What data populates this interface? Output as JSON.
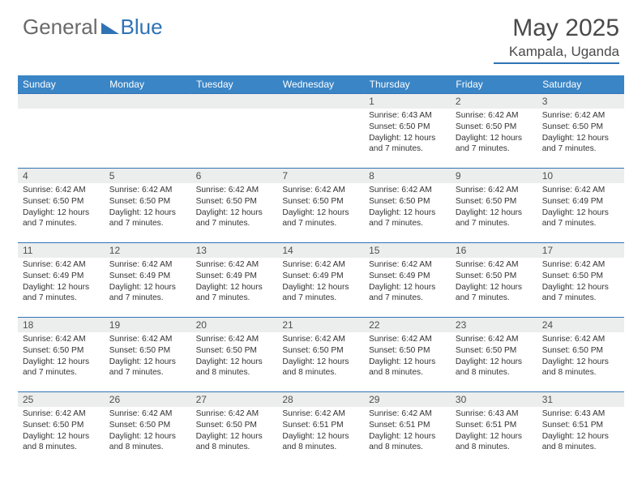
{
  "brand": {
    "part1": "General",
    "part2": "Blue"
  },
  "title": "May 2025",
  "location": "Kampala, Uganda",
  "colors": {
    "header_bg": "#3a85c6",
    "accent": "#2f73b5",
    "daynum_bg": "#eceded",
    "text": "#333333",
    "title_text": "#4a4a4a"
  },
  "day_names": [
    "Sunday",
    "Monday",
    "Tuesday",
    "Wednesday",
    "Thursday",
    "Friday",
    "Saturday"
  ],
  "weeks": [
    [
      {
        "n": "",
        "sr": "",
        "ss": "",
        "dl": ""
      },
      {
        "n": "",
        "sr": "",
        "ss": "",
        "dl": ""
      },
      {
        "n": "",
        "sr": "",
        "ss": "",
        "dl": ""
      },
      {
        "n": "",
        "sr": "",
        "ss": "",
        "dl": ""
      },
      {
        "n": "1",
        "sr": "Sunrise: 6:43 AM",
        "ss": "Sunset: 6:50 PM",
        "dl": "Daylight: 12 hours and 7 minutes."
      },
      {
        "n": "2",
        "sr": "Sunrise: 6:42 AM",
        "ss": "Sunset: 6:50 PM",
        "dl": "Daylight: 12 hours and 7 minutes."
      },
      {
        "n": "3",
        "sr": "Sunrise: 6:42 AM",
        "ss": "Sunset: 6:50 PM",
        "dl": "Daylight: 12 hours and 7 minutes."
      }
    ],
    [
      {
        "n": "4",
        "sr": "Sunrise: 6:42 AM",
        "ss": "Sunset: 6:50 PM",
        "dl": "Daylight: 12 hours and 7 minutes."
      },
      {
        "n": "5",
        "sr": "Sunrise: 6:42 AM",
        "ss": "Sunset: 6:50 PM",
        "dl": "Daylight: 12 hours and 7 minutes."
      },
      {
        "n": "6",
        "sr": "Sunrise: 6:42 AM",
        "ss": "Sunset: 6:50 PM",
        "dl": "Daylight: 12 hours and 7 minutes."
      },
      {
        "n": "7",
        "sr": "Sunrise: 6:42 AM",
        "ss": "Sunset: 6:50 PM",
        "dl": "Daylight: 12 hours and 7 minutes."
      },
      {
        "n": "8",
        "sr": "Sunrise: 6:42 AM",
        "ss": "Sunset: 6:50 PM",
        "dl": "Daylight: 12 hours and 7 minutes."
      },
      {
        "n": "9",
        "sr": "Sunrise: 6:42 AM",
        "ss": "Sunset: 6:50 PM",
        "dl": "Daylight: 12 hours and 7 minutes."
      },
      {
        "n": "10",
        "sr": "Sunrise: 6:42 AM",
        "ss": "Sunset: 6:49 PM",
        "dl": "Daylight: 12 hours and 7 minutes."
      }
    ],
    [
      {
        "n": "11",
        "sr": "Sunrise: 6:42 AM",
        "ss": "Sunset: 6:49 PM",
        "dl": "Daylight: 12 hours and 7 minutes."
      },
      {
        "n": "12",
        "sr": "Sunrise: 6:42 AM",
        "ss": "Sunset: 6:49 PM",
        "dl": "Daylight: 12 hours and 7 minutes."
      },
      {
        "n": "13",
        "sr": "Sunrise: 6:42 AM",
        "ss": "Sunset: 6:49 PM",
        "dl": "Daylight: 12 hours and 7 minutes."
      },
      {
        "n": "14",
        "sr": "Sunrise: 6:42 AM",
        "ss": "Sunset: 6:49 PM",
        "dl": "Daylight: 12 hours and 7 minutes."
      },
      {
        "n": "15",
        "sr": "Sunrise: 6:42 AM",
        "ss": "Sunset: 6:49 PM",
        "dl": "Daylight: 12 hours and 7 minutes."
      },
      {
        "n": "16",
        "sr": "Sunrise: 6:42 AM",
        "ss": "Sunset: 6:50 PM",
        "dl": "Daylight: 12 hours and 7 minutes."
      },
      {
        "n": "17",
        "sr": "Sunrise: 6:42 AM",
        "ss": "Sunset: 6:50 PM",
        "dl": "Daylight: 12 hours and 7 minutes."
      }
    ],
    [
      {
        "n": "18",
        "sr": "Sunrise: 6:42 AM",
        "ss": "Sunset: 6:50 PM",
        "dl": "Daylight: 12 hours and 7 minutes."
      },
      {
        "n": "19",
        "sr": "Sunrise: 6:42 AM",
        "ss": "Sunset: 6:50 PM",
        "dl": "Daylight: 12 hours and 7 minutes."
      },
      {
        "n": "20",
        "sr": "Sunrise: 6:42 AM",
        "ss": "Sunset: 6:50 PM",
        "dl": "Daylight: 12 hours and 8 minutes."
      },
      {
        "n": "21",
        "sr": "Sunrise: 6:42 AM",
        "ss": "Sunset: 6:50 PM",
        "dl": "Daylight: 12 hours and 8 minutes."
      },
      {
        "n": "22",
        "sr": "Sunrise: 6:42 AM",
        "ss": "Sunset: 6:50 PM",
        "dl": "Daylight: 12 hours and 8 minutes."
      },
      {
        "n": "23",
        "sr": "Sunrise: 6:42 AM",
        "ss": "Sunset: 6:50 PM",
        "dl": "Daylight: 12 hours and 8 minutes."
      },
      {
        "n": "24",
        "sr": "Sunrise: 6:42 AM",
        "ss": "Sunset: 6:50 PM",
        "dl": "Daylight: 12 hours and 8 minutes."
      }
    ],
    [
      {
        "n": "25",
        "sr": "Sunrise: 6:42 AM",
        "ss": "Sunset: 6:50 PM",
        "dl": "Daylight: 12 hours and 8 minutes."
      },
      {
        "n": "26",
        "sr": "Sunrise: 6:42 AM",
        "ss": "Sunset: 6:50 PM",
        "dl": "Daylight: 12 hours and 8 minutes."
      },
      {
        "n": "27",
        "sr": "Sunrise: 6:42 AM",
        "ss": "Sunset: 6:50 PM",
        "dl": "Daylight: 12 hours and 8 minutes."
      },
      {
        "n": "28",
        "sr": "Sunrise: 6:42 AM",
        "ss": "Sunset: 6:51 PM",
        "dl": "Daylight: 12 hours and 8 minutes."
      },
      {
        "n": "29",
        "sr": "Sunrise: 6:42 AM",
        "ss": "Sunset: 6:51 PM",
        "dl": "Daylight: 12 hours and 8 minutes."
      },
      {
        "n": "30",
        "sr": "Sunrise: 6:43 AM",
        "ss": "Sunset: 6:51 PM",
        "dl": "Daylight: 12 hours and 8 minutes."
      },
      {
        "n": "31",
        "sr": "Sunrise: 6:43 AM",
        "ss": "Sunset: 6:51 PM",
        "dl": "Daylight: 12 hours and 8 minutes."
      }
    ]
  ]
}
